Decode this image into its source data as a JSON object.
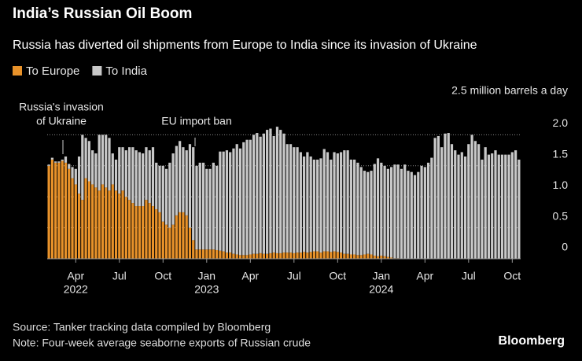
{
  "chart_data": {
    "type": "stacked_bar",
    "title": "India’s Russian Oil Boom",
    "subtitle": "Russia has diverted oil shipments from Europe to India since its invasion of Ukraine",
    "categories": [
      null,
      null,
      null,
      null,
      null,
      null,
      null,
      null,
      "Apr",
      null,
      null,
      null,
      null,
      null,
      null,
      null,
      null,
      null,
      null,
      null,
      null,
      "Jul",
      null,
      null,
      null,
      null,
      null,
      null,
      null,
      null,
      null,
      null,
      null,
      null,
      "Oct",
      null,
      null,
      null,
      null,
      null,
      null,
      null,
      null,
      null,
      null,
      null,
      null,
      "Jan",
      null,
      null,
      null,
      null,
      null,
      null,
      null,
      null,
      null,
      null,
      null,
      null,
      "Apr",
      null,
      null,
      null,
      null,
      null,
      null,
      null,
      null,
      null,
      null,
      null,
      null,
      "Jul",
      null,
      null,
      null,
      null,
      null,
      null,
      null,
      null,
      null,
      null,
      null,
      null,
      "Oct",
      null,
      null,
      null,
      null,
      null,
      null,
      null,
      null,
      null,
      null,
      null,
      null,
      "Jan",
      null,
      null,
      null,
      null,
      null,
      null,
      null,
      null,
      null,
      null,
      null,
      null,
      "Apr",
      null,
      null,
      null,
      null,
      null,
      null,
      null,
      null,
      null,
      null,
      null,
      null,
      "Jul",
      null,
      null,
      null,
      null,
      null,
      null,
      null,
      null,
      null,
      null,
      null,
      null,
      "Oct",
      null,
      null
    ],
    "years": [
      "2022",
      "2023",
      "2024"
    ],
    "series": [
      {
        "name": "To Europe",
        "color": "#e8922a",
        "values": [
          1.5,
          1.6,
          1.55,
          1.55,
          1.58,
          1.55,
          1.45,
          1.3,
          1.2,
          1.05,
          0.95,
          1.3,
          1.25,
          1.2,
          1.15,
          1.1,
          1.2,
          1.15,
          1.1,
          1.2,
          1.1,
          1.05,
          1.1,
          1.0,
          0.95,
          0.9,
          0.85,
          0.85,
          0.85,
          0.95,
          0.9,
          0.85,
          0.8,
          0.75,
          0.6,
          0.55,
          0.5,
          0.55,
          0.7,
          0.75,
          0.75,
          0.7,
          0.5,
          0.3,
          0.15,
          0.15,
          0.15,
          0.15,
          0.15,
          0.15,
          0.14,
          0.13,
          0.12,
          0.1,
          0.1,
          0.08,
          0.07,
          0.06,
          0.06,
          0.06,
          0.07,
          0.08,
          0.08,
          0.09,
          0.08,
          0.08,
          0.09,
          0.1,
          0.09,
          0.09,
          0.1,
          0.1,
          0.1,
          0.09,
          0.1,
          0.1,
          0.11,
          0.1,
          0.11,
          0.12,
          0.12,
          0.1,
          0.12,
          0.12,
          0.11,
          0.12,
          0.11,
          0.1,
          0.08,
          0.08,
          0.07,
          0.07,
          0.06,
          0.06,
          0.07,
          0.08,
          0.07,
          0.05,
          0.04,
          0.05,
          0.04,
          0.03,
          0.02,
          0.01,
          0.01,
          0,
          0,
          0,
          0,
          0,
          0,
          0,
          0,
          0,
          0,
          0,
          0,
          0,
          0,
          0,
          0,
          0,
          0,
          0,
          0,
          0,
          0,
          0,
          0,
          0,
          0,
          0,
          0,
          0,
          0,
          0,
          0,
          0,
          0,
          0,
          0
        ]
      },
      {
        "name": "To India",
        "color": "#c8c8c8",
        "values": [
          0.02,
          0.03,
          0.02,
          0.02,
          0.02,
          0.1,
          0.08,
          0.18,
          0.25,
          0.6,
          1.05,
          0.65,
          0.65,
          0.55,
          0.55,
          0.9,
          0.8,
          0.85,
          0.85,
          0.5,
          0.5,
          0.75,
          0.7,
          0.75,
          0.85,
          0.9,
          0.9,
          0.87,
          0.85,
          0.85,
          0.85,
          0.95,
          0.75,
          0.75,
          0.9,
          0.9,
          1.05,
          1.15,
          1.12,
          1.15,
          1.05,
          1.05,
          1.35,
          1.5,
          1.35,
          1.4,
          1.4,
          1.3,
          1.3,
          1.4,
          1.36,
          1.6,
          1.61,
          1.65,
          1.62,
          1.7,
          1.78,
          1.72,
          1.82,
          1.86,
          1.85,
          1.92,
          1.95,
          1.88,
          1.94,
          2.0,
          2.01,
          1.88,
          2.04,
          1.99,
          1.92,
          1.75,
          1.75,
          1.71,
          1.7,
          1.62,
          1.54,
          1.62,
          1.54,
          1.48,
          1.48,
          1.52,
          1.65,
          1.6,
          1.49,
          1.6,
          1.59,
          1.62,
          1.67,
          1.67,
          1.53,
          1.53,
          1.49,
          1.42,
          1.35,
          1.32,
          1.35,
          1.48,
          1.58,
          1.5,
          1.46,
          1.42,
          1.46,
          1.51,
          1.51,
          1.45,
          1.52,
          1.42,
          1.4,
          1.35,
          1.4,
          1.5,
          1.48,
          1.55,
          1.63,
          1.95,
          1.98,
          1.8,
          2.02,
          2.03,
          1.85,
          1.75,
          1.68,
          1.72,
          1.65,
          1.85,
          2.0,
          1.9,
          1.85,
          1.6,
          1.8,
          1.68,
          1.7,
          1.75,
          1.68,
          1.68,
          1.68,
          1.68,
          1.72,
          1.75,
          1.6
        ]
      }
    ],
    "ylim": [
      0,
      2.5
    ],
    "yticks": [
      0,
      0.5,
      {
        "value": 1,
        "label": "1.0"
      },
      1.5,
      {
        "value": 2,
        "label": "2.0"
      },
      {
        "value": 2.5,
        "label": "2.5 million barrels a day"
      }
    ],
    "grid": true,
    "annotations": [
      {
        "lines": [
          "Russia's invasion",
          "of Ukraine"
        ]
      },
      {
        "lines": [
          "EU import ban"
        ]
      }
    ],
    "source": "Source: Tanker tracking data compiled by Bloomberg",
    "note": "Note: Four-week average seaborne exports of Russian crude",
    "brand": "Bloomberg"
  }
}
